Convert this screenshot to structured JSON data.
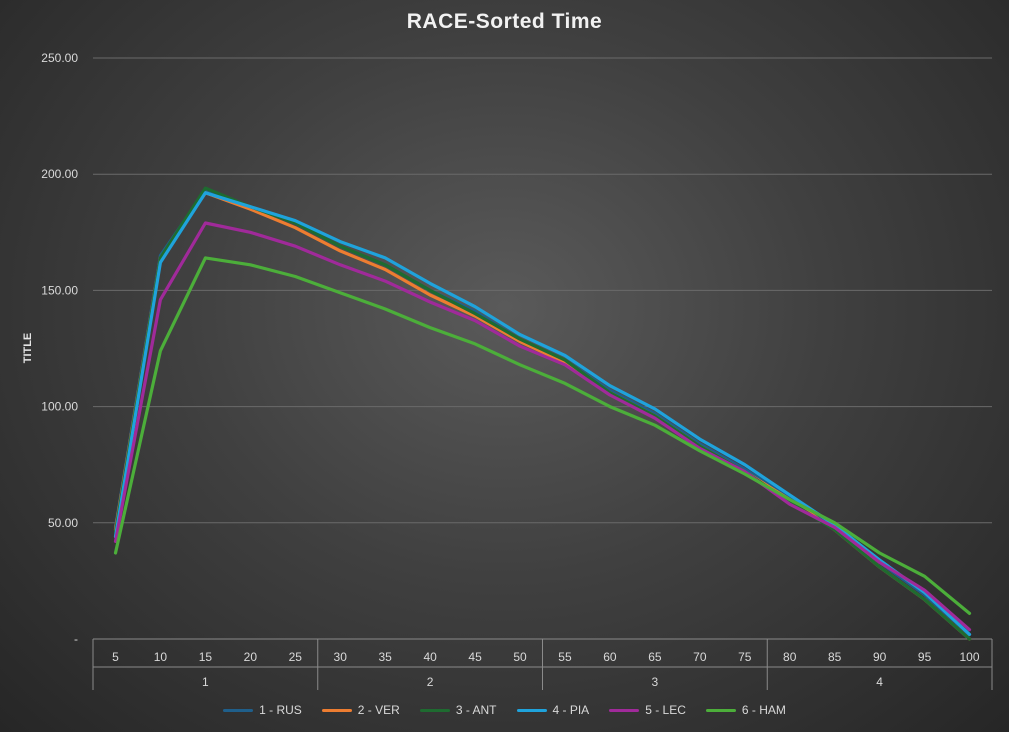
{
  "chart_data": {
    "type": "line",
    "title": "RACE-Sorted Time",
    "ylabel": "TITLE",
    "xlabel": "",
    "ylim": [
      0,
      250
    ],
    "y_ticks": [
      "-",
      "50.00",
      "100.00",
      "150.00",
      "200.00",
      "250.00"
    ],
    "x": [
      5,
      10,
      15,
      20,
      25,
      30,
      35,
      40,
      45,
      50,
      55,
      60,
      65,
      70,
      75,
      80,
      85,
      90,
      95,
      100
    ],
    "x_groups": [
      {
        "label": "1",
        "from": 5,
        "to": 25
      },
      {
        "label": "2",
        "from": 30,
        "to": 50
      },
      {
        "label": "3",
        "from": 55,
        "to": 75
      },
      {
        "label": "4",
        "from": 80,
        "to": 100
      }
    ],
    "grid": true,
    "legend_position": "bottom",
    "series": [
      {
        "name": "1 - RUS",
        "color": "#1f5f8b",
        "values": [
          48,
          165,
          193,
          186,
          179,
          169,
          161,
          150,
          141,
          129,
          120,
          107,
          97,
          84,
          73,
          61,
          49,
          33,
          19,
          2
        ]
      },
      {
        "name": "2 - VER",
        "color": "#ed7d31",
        "values": [
          47,
          164,
          192,
          185,
          177,
          167,
          159,
          148,
          139,
          128,
          119,
          106,
          96,
          83,
          72,
          60,
          47,
          31,
          17,
          0
        ]
      },
      {
        "name": "3 - ANT",
        "color": "#1e6b30",
        "values": [
          46,
          164,
          194,
          186,
          179,
          169,
          161,
          150,
          140,
          129,
          120,
          106,
          96,
          83,
          72,
          59,
          47,
          31,
          17,
          0
        ]
      },
      {
        "name": "4 - PIA",
        "color": "#1fa3dc",
        "values": [
          44,
          162,
          192,
          186,
          180,
          171,
          164,
          153,
          143,
          131,
          122,
          109,
          99,
          86,
          75,
          62,
          49,
          34,
          20,
          2
        ]
      },
      {
        "name": "5 - LEC",
        "color": "#a02a9a",
        "values": [
          42,
          146,
          179,
          175,
          169,
          161,
          154,
          145,
          137,
          126,
          118,
          105,
          95,
          82,
          72,
          58,
          48,
          33,
          21,
          4
        ]
      },
      {
        "name": "6 - HAM",
        "color": "#4cae3a",
        "values": [
          37,
          124,
          164,
          161,
          156,
          149,
          142,
          134,
          127,
          118,
          110,
          100,
          92,
          81,
          71,
          60,
          50,
          37,
          27,
          11
        ]
      }
    ]
  }
}
